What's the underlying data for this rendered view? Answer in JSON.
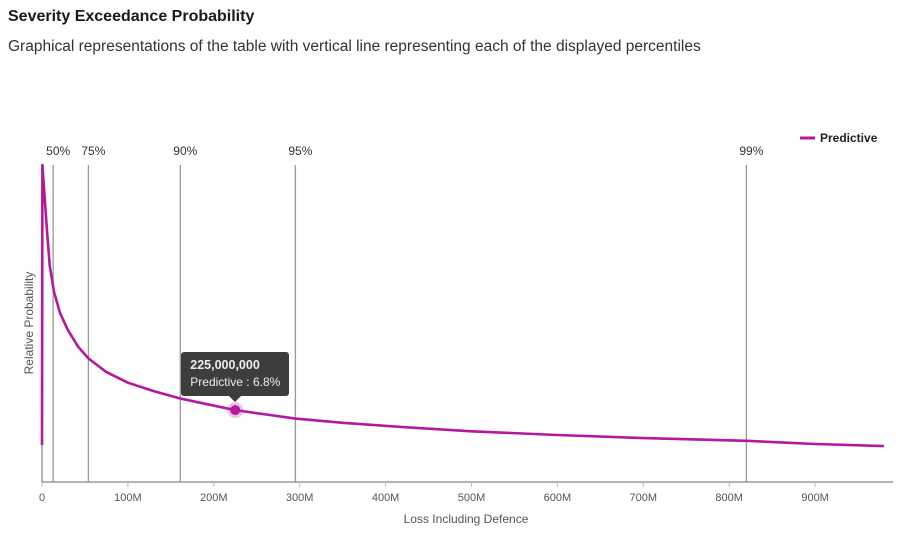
{
  "header": {
    "title": "Severity Exceedance Probability",
    "subtitle": "Graphical representations of the table with vertical line representing each of the displayed percentiles"
  },
  "chart_data": {
    "type": "line",
    "xlabel": "Loss Including Defence",
    "ylabel": "Relative Probability",
    "xlim": [
      0,
      985000000
    ],
    "ylim": [
      0,
      30
    ],
    "x_ticks": [
      {
        "value": 0,
        "label": "0"
      },
      {
        "value": 100000000,
        "label": "100M"
      },
      {
        "value": 200000000,
        "label": "200M"
      },
      {
        "value": 300000000,
        "label": "300M"
      },
      {
        "value": 400000000,
        "label": "400M"
      },
      {
        "value": 500000000,
        "label": "500M"
      },
      {
        "value": 600000000,
        "label": "600M"
      },
      {
        "value": 700000000,
        "label": "700M"
      },
      {
        "value": 800000000,
        "label": "800M"
      },
      {
        "value": 900000000,
        "label": "900M"
      }
    ],
    "grid": false,
    "legend": {
      "placement": "top-right"
    },
    "series": [
      {
        "name": "Predictive",
        "color": "#b5179e",
        "x": [
          0,
          500000,
          3000000,
          6000000,
          9000000,
          14000000,
          21000000,
          30000000,
          42000000,
          54000000,
          75000000,
          100000000,
          130000000,
          161000000,
          190000000,
          225000000,
          260000000,
          295000000,
          350000000,
          420000000,
          500000000,
          600000000,
          700000000,
          820000000,
          900000000,
          980000000
        ],
        "values": [
          3.5,
          30,
          27,
          23.5,
          20.5,
          18,
          16,
          14.4,
          12.8,
          11.7,
          10.4,
          9.4,
          8.6,
          7.9,
          7.4,
          6.8,
          6.4,
          6.0,
          5.6,
          5.2,
          4.8,
          4.45,
          4.15,
          3.9,
          3.6,
          3.4
        ]
      }
    ],
    "percentiles": [
      {
        "label": "50%",
        "value": 13000000
      },
      {
        "label": "75%",
        "value": 54000000
      },
      {
        "label": "90%",
        "value": 161000000
      },
      {
        "label": "95%",
        "value": 295000000
      },
      {
        "label": "99%",
        "value": 820000000
      }
    ],
    "tooltip": {
      "x": 225000000,
      "y": 6.8,
      "value_label": "225,000,000",
      "series_label": "Predictive : 6.8%"
    }
  }
}
